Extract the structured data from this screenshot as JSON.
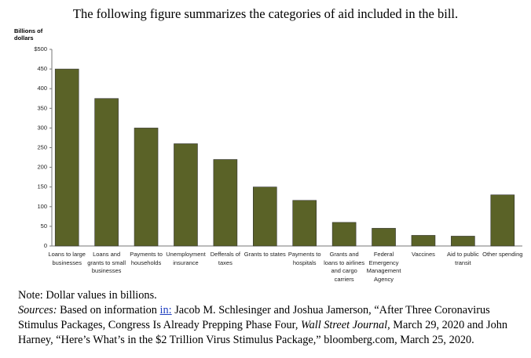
{
  "intro": "The following figure summarizes the categories of aid included in the bill.",
  "chart_data": {
    "type": "bar",
    "y_label": "Billions of dollars",
    "categories": [
      "Loans to large businesses",
      "Loans and grants to small businesses",
      "Payments to households",
      "Unemployment insurance",
      "Defferals of taxes",
      "Grants to states",
      "Payments to hospitals",
      "Grants and loans to airlines and cargo carriers",
      "Federal Emergency Management Agency",
      "Vaccines",
      "Aid to public transit",
      "Other spending"
    ],
    "values": [
      450,
      375,
      300,
      260,
      220,
      150,
      116,
      60,
      45,
      27,
      25,
      130
    ],
    "color": "#5a6227",
    "ylim": [
      0,
      500
    ],
    "yticks": [
      0,
      50,
      100,
      150,
      200,
      250,
      300,
      350,
      400,
      450,
      {
        "value": 500,
        "label": "$500"
      }
    ],
    "grid": false
  },
  "note": "Note: Dollar values in billions.",
  "sources": [
    "Sources:",
    " Based on information ",
    "in:",
    " Jacob M. Schlesinger and Joshua Jamerson, “After Three Coronavirus Stimulus Packages, Congress Is Already Prepping Phase Four, ",
    "Wall Street Journal",
    ", March 29, 2020 and John Harney, “Here’s What’s in the $2 Trillion Virus Stimulus Package,” bloomberg.com, March 25, 2020."
  ]
}
